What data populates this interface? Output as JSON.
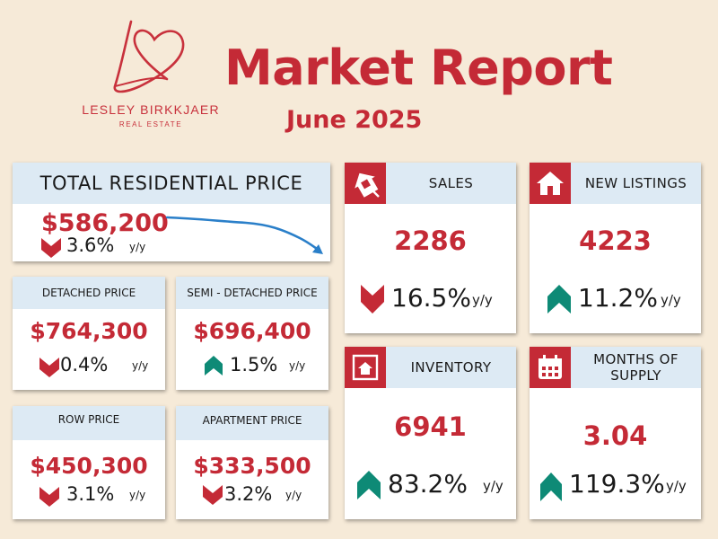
{
  "header": {
    "title": "Market Report",
    "subtitle": "June 2025",
    "brand_name": "LESLEY BIRKKJAER",
    "brand_sub": "REAL ESTATE"
  },
  "colors": {
    "accent_red": "#c42a36",
    "header_blue": "#ddeaf4",
    "teal_up": "#0e8a76",
    "background": "#f6ead8"
  },
  "total": {
    "label": "TOTAL RESIDENTIAL PRICE",
    "value": "$586,200",
    "change": "3.6%",
    "unit": "y/y",
    "direction": "down",
    "trend_color": "#2a7fc9"
  },
  "prices": [
    {
      "label": "DETACHED PRICE",
      "value": "$764,300",
      "change": "0.4%",
      "unit": "y/y",
      "direction": "down"
    },
    {
      "label": "SEMI - DETACHED PRICE",
      "value": "$696,400",
      "change": "1.5%",
      "unit": "y/y",
      "direction": "up"
    },
    {
      "label": "ROW PRICE",
      "value": "$450,300",
      "change": "3.1%",
      "unit": "y/y",
      "direction": "down"
    },
    {
      "label": "APARTMENT PRICE",
      "value": "$333,500",
      "change": "3.2%",
      "unit": "y/y",
      "direction": "down"
    }
  ],
  "tiles": [
    {
      "label": "SALES",
      "value": "2286",
      "change": "16.5%",
      "unit": "y/y",
      "direction": "down",
      "icon": "house-tag-icon"
    },
    {
      "label": "NEW LISTINGS",
      "value": "4223",
      "change": "11.2%",
      "unit": "y/y",
      "direction": "up",
      "icon": "house-icon"
    },
    {
      "label": "INVENTORY",
      "value": "6941",
      "change": "83.2%",
      "unit": "y/y",
      "direction": "up",
      "icon": "house-sign-icon"
    },
    {
      "label": "MONTHS OF SUPPLY",
      "value": "3.04",
      "change": "119.3%",
      "unit": "y/y",
      "direction": "up",
      "icon": "calendar-icon"
    }
  ]
}
